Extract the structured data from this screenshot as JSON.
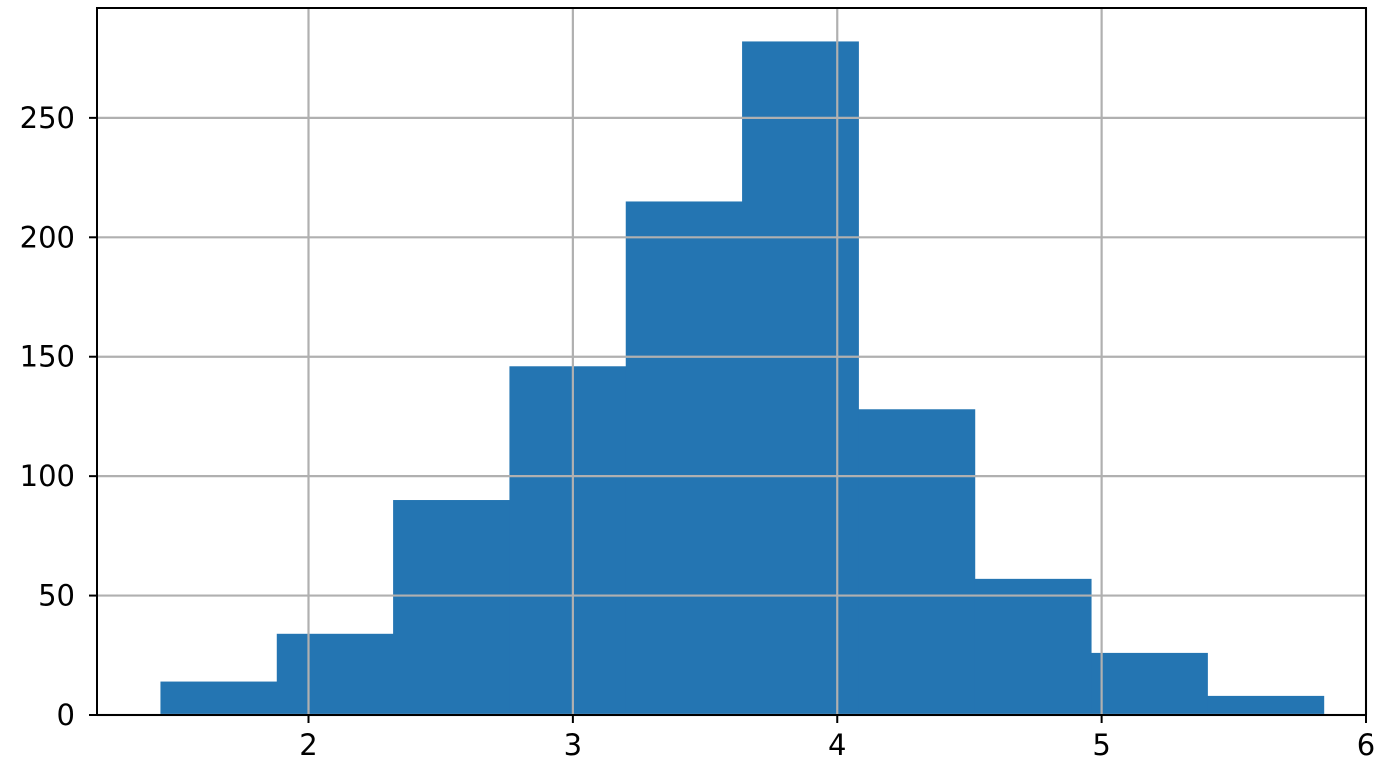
{
  "chart_data": {
    "type": "histogram",
    "xlim": [
      1.2,
      6.0
    ],
    "ylim": [
      0,
      296
    ],
    "xticks": [
      2,
      3,
      4,
      5,
      6
    ],
    "yticks": [
      0,
      50,
      100,
      150,
      200,
      250
    ],
    "xtick_labels": [
      "2",
      "3",
      "4",
      "5",
      "6"
    ],
    "ytick_labels": [
      "0",
      "50",
      "100",
      "150",
      "200",
      "250"
    ],
    "grid": true,
    "bins": [
      {
        "x0": 1.44,
        "x1": 1.88,
        "count": 14
      },
      {
        "x0": 1.88,
        "x1": 2.32,
        "count": 34
      },
      {
        "x0": 2.32,
        "x1": 2.76,
        "count": 90
      },
      {
        "x0": 2.76,
        "x1": 3.2,
        "count": 146
      },
      {
        "x0": 3.2,
        "x1": 3.64,
        "count": 215
      },
      {
        "x0": 3.64,
        "x1": 4.08,
        "count": 282
      },
      {
        "x0": 4.08,
        "x1": 4.52,
        "count": 128
      },
      {
        "x0": 4.52,
        "x1": 4.96,
        "count": 57
      },
      {
        "x0": 4.96,
        "x1": 5.4,
        "count": 26
      },
      {
        "x0": 5.4,
        "x1": 5.84,
        "count": 8
      }
    ],
    "colors": {
      "bar": "#2475b2",
      "grid": "#b0b0b0",
      "axis": "#000000"
    }
  }
}
